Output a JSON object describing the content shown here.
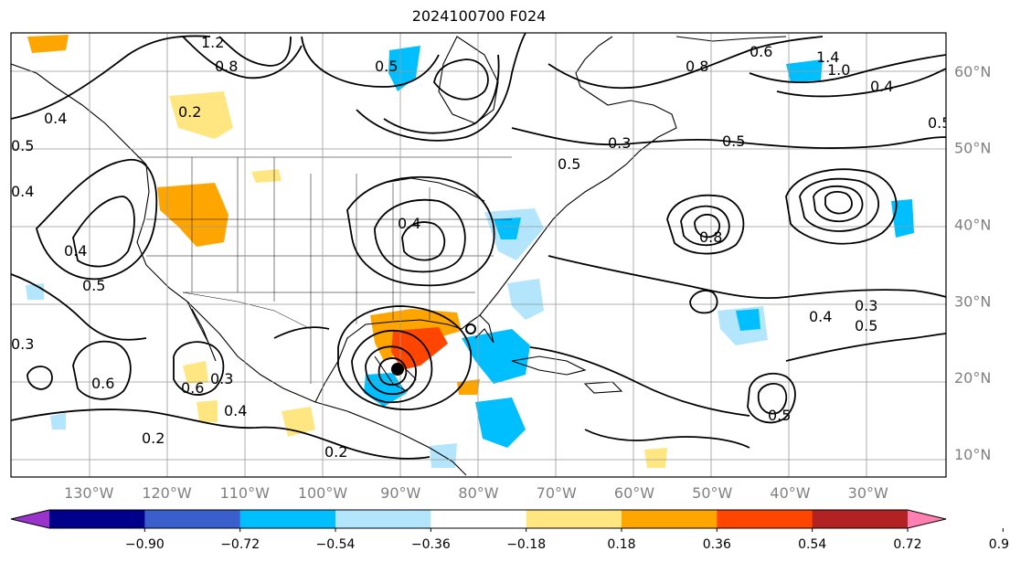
{
  "title": "2024100700 F024",
  "map": {
    "projection": "plate-carree",
    "lon_range": [
      -140,
      -20
    ],
    "lat_range": [
      7,
      65
    ],
    "gridlines": true,
    "field_contour_labels": [
      "1.2",
      "0.8",
      "0.5",
      "0.4",
      "0.4",
      "0.5",
      "0.2",
      "0.4",
      "0.5",
      "0.8",
      "0.3",
      "0.5",
      "0.6",
      "0.3",
      "0.4",
      "0.6",
      "0.5",
      "0.4",
      "0.2",
      "0.2",
      "0.3",
      "1.4",
      "1.0",
      "0.6",
      "0.8",
      "0.4",
      "0.5",
      "0.5",
      "0.4",
      "0.3",
      "0.5"
    ]
  },
  "lon_ticks": [
    {
      "lon": -130,
      "label": "130°W"
    },
    {
      "lon": -120,
      "label": "120°W"
    },
    {
      "lon": -110,
      "label": "110°W"
    },
    {
      "lon": -100,
      "label": "100°W"
    },
    {
      "lon": -90,
      "label": "90°W"
    },
    {
      "lon": -80,
      "label": "80°W"
    },
    {
      "lon": -70,
      "label": "70°W"
    },
    {
      "lon": -60,
      "label": "60°W"
    },
    {
      "lon": -50,
      "label": "50°W"
    },
    {
      "lon": -40,
      "label": "40°W"
    },
    {
      "lon": -30,
      "label": "30°W"
    }
  ],
  "lat_ticks": [
    {
      "lat": 60,
      "label": "60°N"
    },
    {
      "lat": 50,
      "label": "50°N"
    },
    {
      "lat": 40,
      "label": "40°N"
    },
    {
      "lat": 30,
      "label": "30°N"
    },
    {
      "lat": 20,
      "label": "20°N"
    },
    {
      "lat": 10,
      "label": "10°N"
    }
  ],
  "colorbar": {
    "extend": "both",
    "colors": [
      "#9933cc",
      "#00008b",
      "#3a5fcd",
      "#00bfff",
      "#b3e5fc",
      "#ffffff",
      "#ffe680",
      "#ffa500",
      "#ff4500",
      "#b22222",
      "#ff80b0"
    ],
    "ticks": [
      "−0.90",
      "−0.72",
      "−0.54",
      "−0.36",
      "−0.18",
      "0.18",
      "0.36",
      "0.54",
      "0.72",
      "0.90"
    ]
  }
}
